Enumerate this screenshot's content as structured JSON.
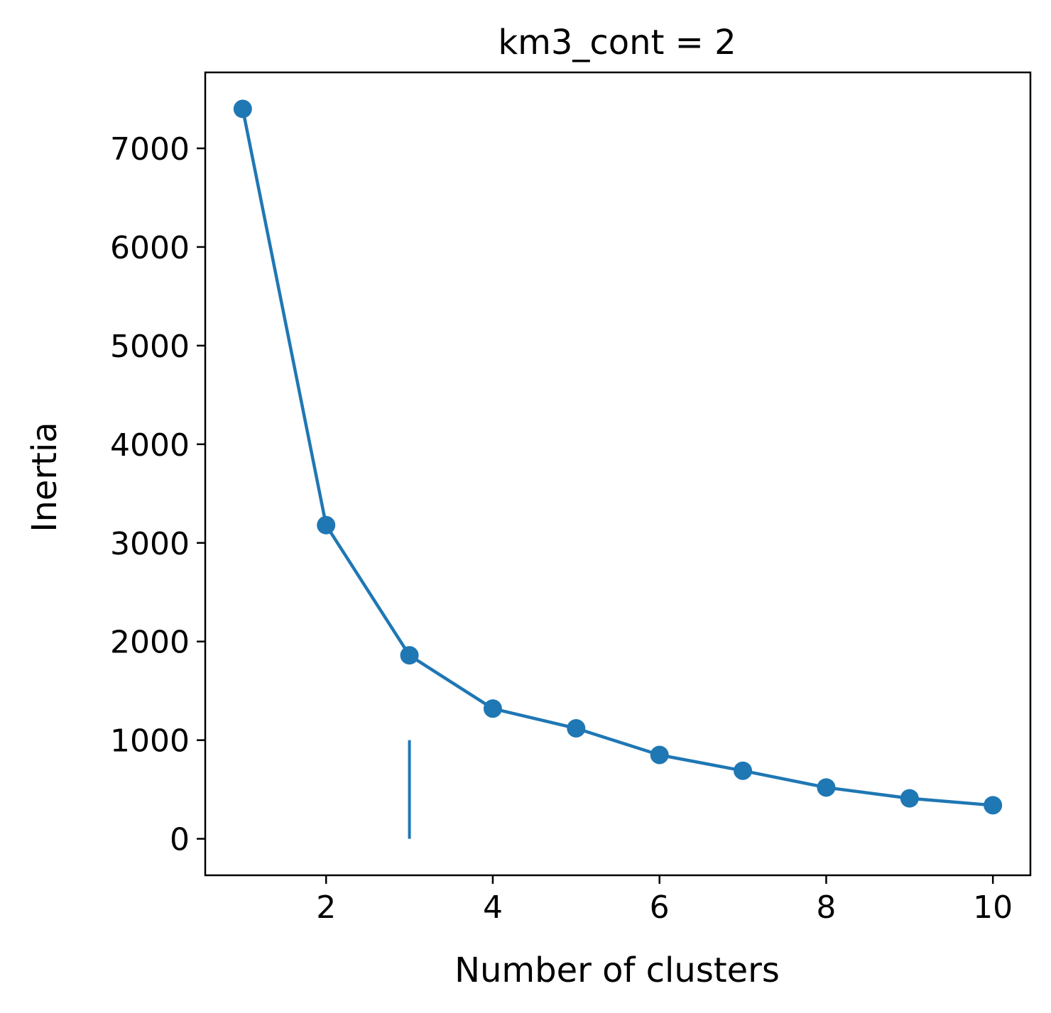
{
  "chart_data": {
    "type": "line",
    "title": "km3_cont = 2",
    "xlabel": "Number of clusters",
    "ylabel": "Inertia",
    "x": [
      1,
      2,
      3,
      4,
      5,
      6,
      7,
      8,
      9,
      10
    ],
    "series": [
      {
        "values": [
          7400,
          3180,
          1860,
          1320,
          1120,
          850,
          690,
          520,
          410,
          340
        ],
        "color": "#1f77b4",
        "marker": "circle"
      }
    ],
    "annotations": [
      {
        "type": "vertical-line",
        "x": 3,
        "y_from": 0,
        "y_to": 1000,
        "color": "#1f77b4"
      }
    ],
    "xlim": [
      0.55,
      10.45
    ],
    "ylim": [
      -370,
      7770
    ],
    "xticks": [
      2,
      4,
      6,
      8,
      10
    ],
    "yticks": [
      0,
      1000,
      2000,
      3000,
      4000,
      5000,
      6000,
      7000
    ],
    "grid": false
  }
}
